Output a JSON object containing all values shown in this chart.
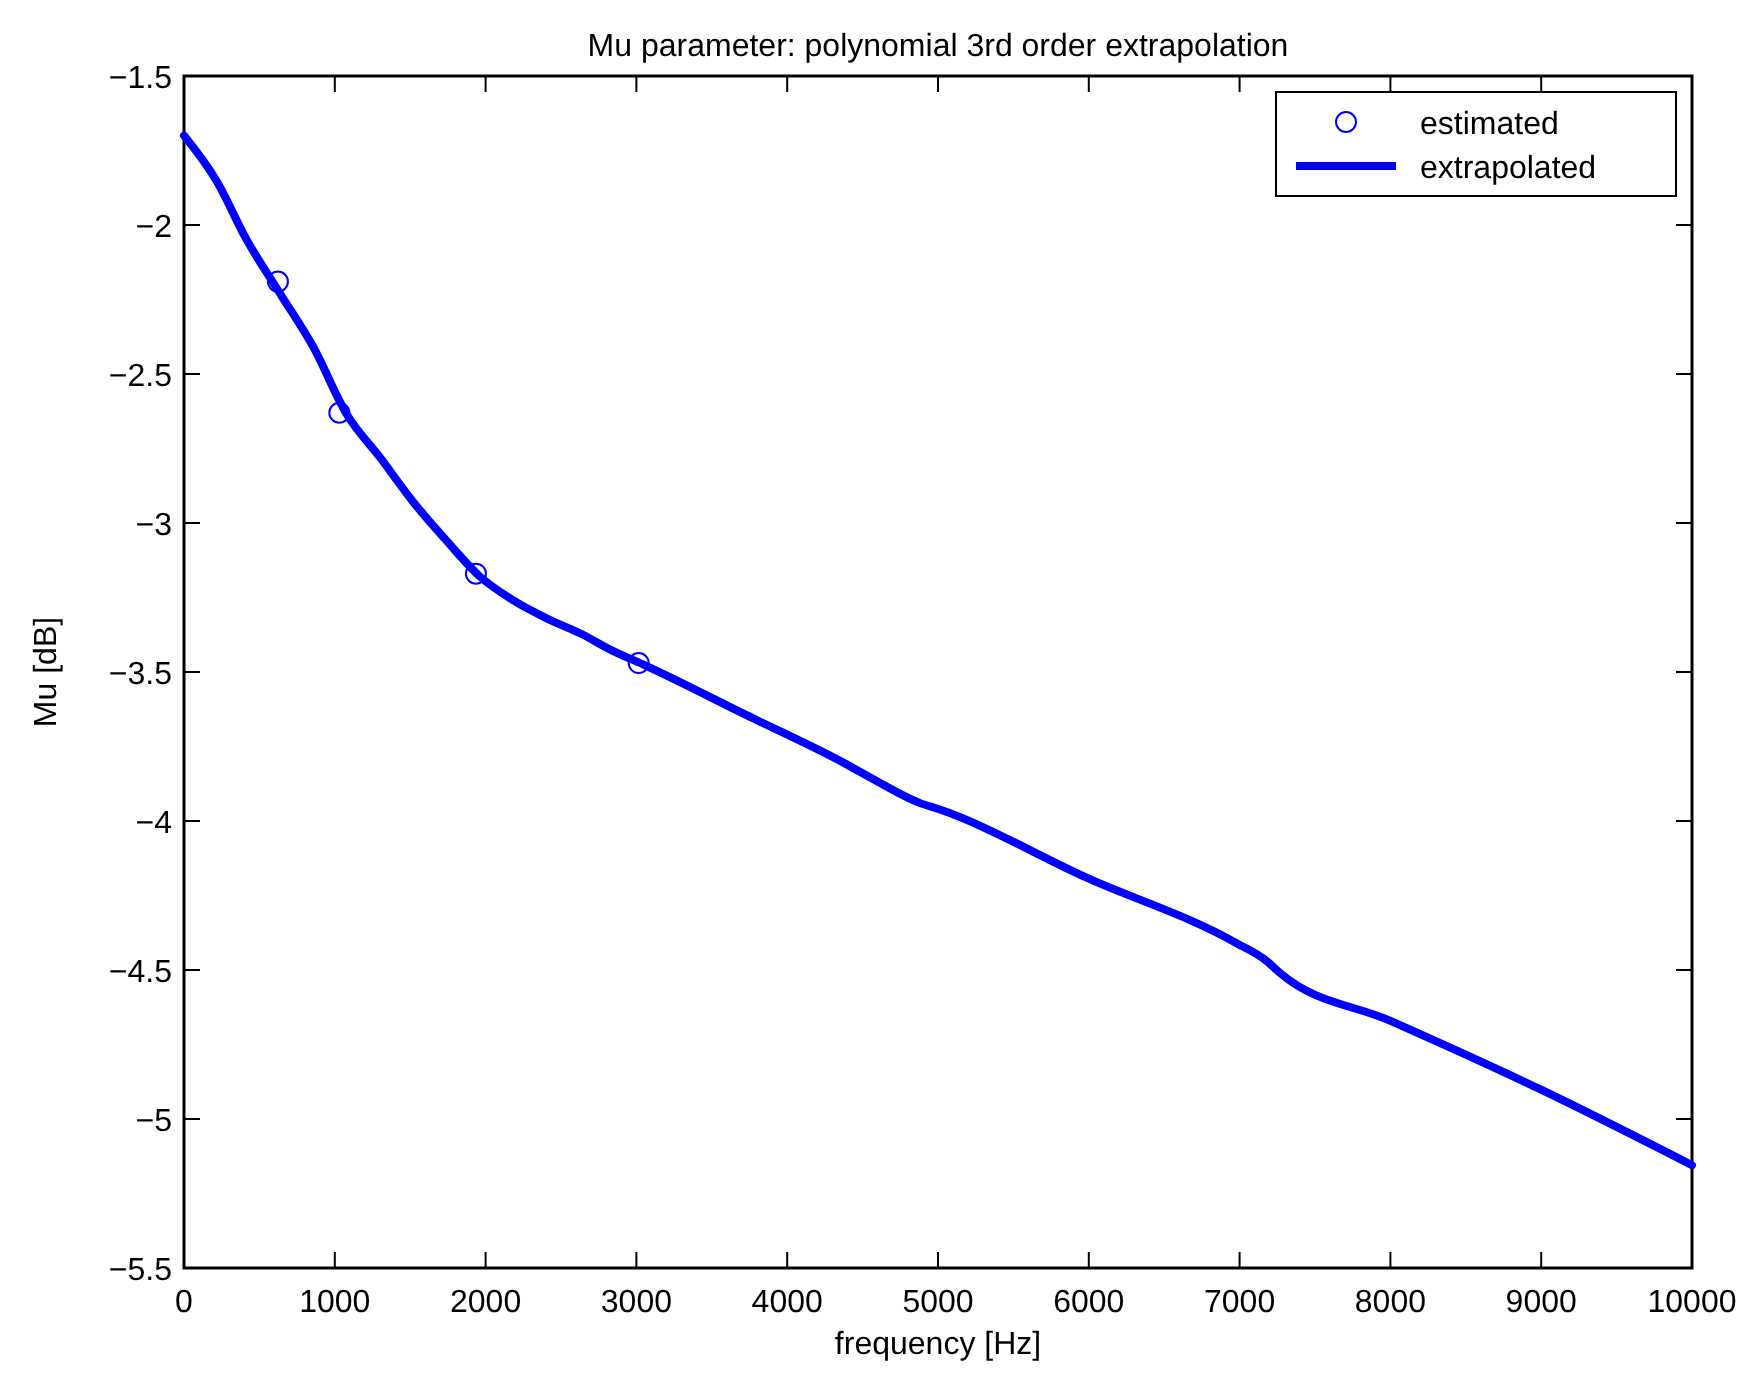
{
  "chart_data": {
    "type": "line",
    "title": "Mu parameter: polynomial 3rd order extrapolation",
    "xlabel": "frequency [Hz]",
    "ylabel": "Mu [dB]",
    "xlim": [
      0,
      10000
    ],
    "xticks": [
      0,
      1000,
      2000,
      3000,
      4000,
      5000,
      6000,
      7000,
      8000,
      9000,
      10000
    ],
    "ylim": [
      -5.5,
      -1.5
    ],
    "yticks": [
      -5.5,
      -5,
      -4.5,
      -4,
      -3.5,
      -3,
      -2.5,
      -2,
      -1.5
    ],
    "grid": false,
    "legend": "top right",
    "series": [
      {
        "name": "estimated",
        "type": "scatter",
        "marker": "circle",
        "color": "#0000ff",
        "x": [
          623,
          1030,
          1936,
          3015
        ],
        "values": [
          -2.19,
          -2.63,
          -3.17,
          -3.47
        ]
      },
      {
        "name": "extrapolated",
        "type": "line",
        "marker": "none",
        "color": "#0000ff",
        "x": [
          0,
          217,
          416,
          637,
          858,
          1079,
          1300,
          1521,
          1742,
          1963,
          2184,
          2405,
          2626,
          2847,
          3068,
          3731,
          4394,
          4571,
          4881,
          5003,
          5985,
          6980,
          7180,
          7268,
          7997,
          8992,
          10000
        ],
        "values": [
          -1.7,
          -1.853,
          -2.05,
          -2.23,
          -2.41,
          -2.635,
          -2.78,
          -2.93,
          -3.06,
          -3.18,
          -3.26,
          -3.32,
          -3.37,
          -3.43,
          -3.48,
          -3.645,
          -3.81,
          -3.86,
          -3.94,
          -3.96,
          -4.19,
          -4.41,
          -4.47,
          -4.51,
          -4.67,
          -4.9,
          -5.155
        ]
      }
    ]
  }
}
